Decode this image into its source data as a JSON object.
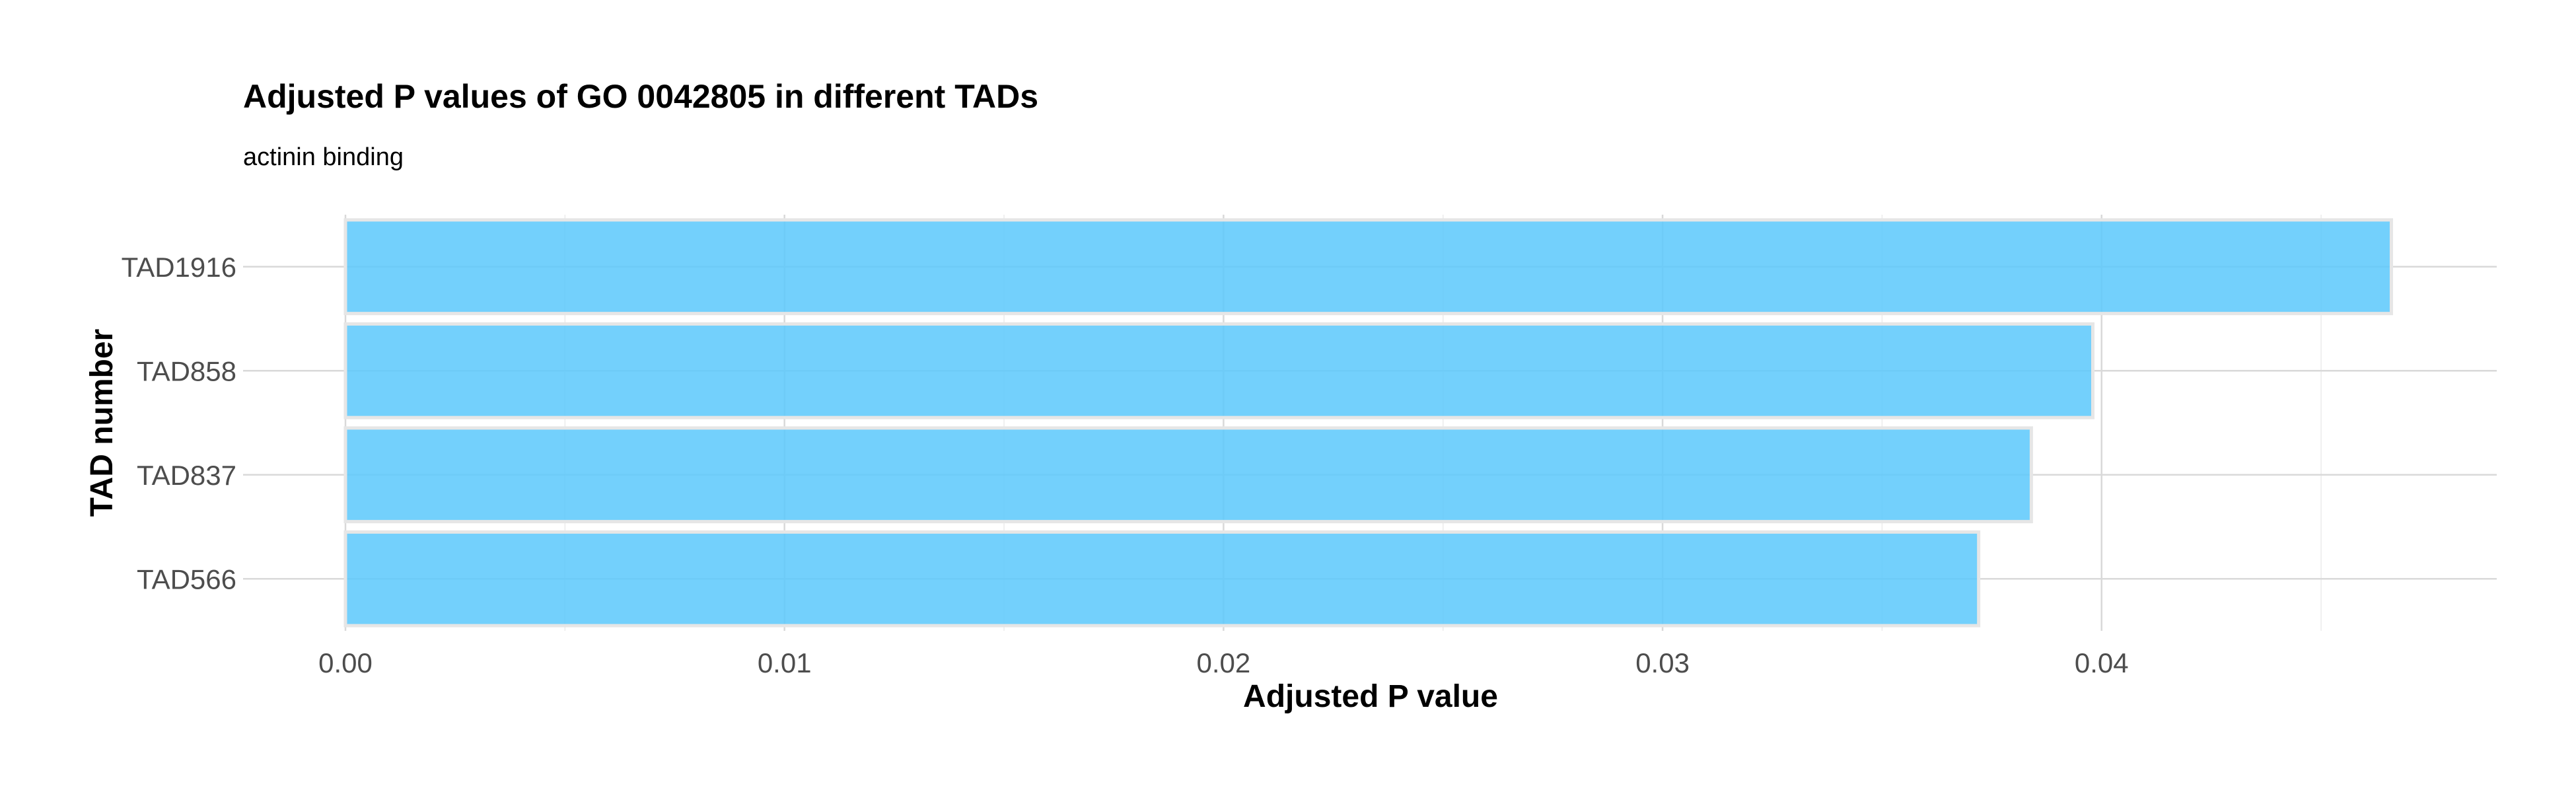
{
  "chart_data": {
    "type": "bar",
    "orientation": "horizontal",
    "title": "Adjusted P values of GO 0042805 in different TADs",
    "subtitle": "actinin binding",
    "xlabel": "Adjusted P value",
    "ylabel": "TAD number",
    "categories": [
      "TAD1916",
      "TAD858",
      "TAD837",
      "TAD566"
    ],
    "values": [
      0.0466,
      0.0398,
      0.0384,
      0.0372
    ],
    "xlim": [
      0,
      0.049
    ],
    "x_ticks": [
      0.0,
      0.01,
      0.02,
      0.03,
      0.04
    ],
    "x_tick_labels": [
      "0.00",
      "0.01",
      "0.02",
      "0.03",
      "0.04"
    ],
    "grid": true,
    "legend": "none",
    "bar_color": "#5bc8fb"
  }
}
